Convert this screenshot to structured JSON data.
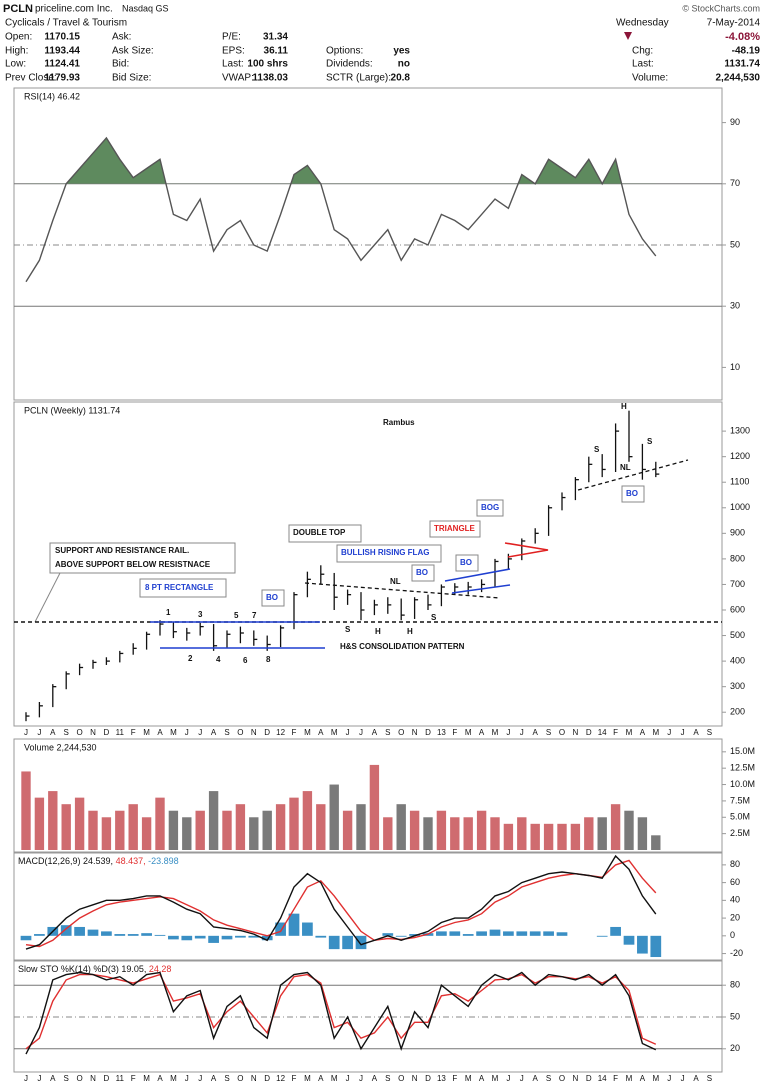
{
  "header": {
    "symbol": "PCLN",
    "name": "priceline.com Inc.",
    "exchange": "Nasdaq GS",
    "copyright": "© StockCharts.com",
    "sector": "Cyclicals / Travel & Tourism",
    "day": "Wednesday",
    "date": "7-May-2014",
    "change_pct": "-4.08%",
    "col1": [
      [
        "Open:",
        "1170.15"
      ],
      [
        "High:",
        "1193.44"
      ],
      [
        "Low:",
        "1124.41"
      ],
      [
        "Prev Close:",
        "1179.93"
      ]
    ],
    "col2": [
      [
        "Ask:"
      ],
      [
        "Ask Size:"
      ],
      [
        "Bid:"
      ],
      [
        "Bid Size:"
      ]
    ],
    "col3": [
      [
        "P/E:",
        "31.34"
      ],
      [
        "EPS:",
        "36.11"
      ],
      [
        "Last:",
        "100 shrs"
      ],
      [
        "VWAP:",
        "1138.03"
      ]
    ],
    "col4": [
      [
        "Options:",
        "yes"
      ],
      [
        "Dividends:",
        "no"
      ],
      [
        "SCTR (Large):",
        "20.8"
      ]
    ],
    "col5": [
      [
        "Chg:",
        "-48.19"
      ],
      [
        "Last:",
        "1131.74"
      ],
      [
        "Volume:",
        "2,244,530"
      ]
    ]
  },
  "chart_data": [
    {
      "type": "line",
      "label": "RSI(14) 46.42",
      "ylim": [
        0,
        100
      ],
      "yticks": [
        10,
        30,
        50,
        70,
        90
      ],
      "ref_lines": [
        30,
        50,
        70
      ],
      "fill_above": 70,
      "fill_color": "#5e8a5e",
      "series": [
        {
          "color": "#555555",
          "values": [
            38,
            45,
            58,
            70,
            75,
            80,
            85,
            78,
            72,
            75,
            78,
            60,
            58,
            65,
            48,
            55,
            58,
            50,
            48,
            60,
            73,
            76,
            70,
            55,
            52,
            45,
            50,
            55,
            45,
            52,
            50,
            60,
            58,
            55,
            60,
            65,
            62,
            73,
            70,
            78,
            75,
            72,
            78,
            70,
            78,
            60,
            52,
            46.42,
            null,
            null,
            null,
            null
          ]
        }
      ]
    },
    {
      "type": "ohlc",
      "label": "PCLN (Weekly) 1131.74",
      "ylim": [
        150,
        1410
      ],
      "yticks": [
        200,
        300,
        400,
        500,
        600,
        700,
        800,
        900,
        1000,
        1100,
        1200,
        1300
      ],
      "color": "#111111",
      "categories": [
        "J",
        "J",
        "A",
        "S",
        "O",
        "N",
        "D",
        "11",
        "F",
        "M",
        "A",
        "M",
        "J",
        "J",
        "A",
        "S",
        "O",
        "N",
        "D",
        "12",
        "F",
        "M",
        "A",
        "M",
        "J",
        "J",
        "A",
        "S",
        "O",
        "N",
        "D",
        "13",
        "F",
        "M",
        "A",
        "M",
        "J",
        "J",
        "A",
        "S",
        "O",
        "N",
        "D",
        "14",
        "F",
        "M",
        "A",
        "M",
        "J",
        "J",
        "A",
        "S"
      ],
      "high": [
        200,
        240,
        310,
        360,
        390,
        405,
        415,
        440,
        470,
        515,
        560,
        555,
        530,
        550,
        545,
        520,
        535,
        520,
        500,
        540,
        670,
        750,
        775,
        745,
        680,
        670,
        640,
        650,
        645,
        650,
        660,
        700,
        705,
        710,
        720,
        800,
        820,
        880,
        920,
        1010,
        1060,
        1120,
        1200,
        1210,
        1330,
        1380,
        1250,
        1180,
        null,
        null,
        null,
        null
      ],
      "low": [
        165,
        180,
        220,
        290,
        345,
        370,
        385,
        395,
        425,
        445,
        500,
        490,
        480,
        500,
        440,
        450,
        470,
        460,
        440,
        455,
        525,
        650,
        700,
        600,
        620,
        560,
        580,
        585,
        560,
        565,
        600,
        615,
        660,
        660,
        670,
        690,
        760,
        795,
        860,
        890,
        990,
        1030,
        1100,
        1120,
        1140,
        1180,
        1110,
        1120,
        null,
        null,
        null,
        null
      ],
      "close": [
        185,
        225,
        300,
        350,
        375,
        395,
        400,
        430,
        450,
        505,
        545,
        515,
        510,
        535,
        460,
        505,
        510,
        485,
        465,
        530,
        660,
        720,
        740,
        650,
        660,
        600,
        620,
        620,
        580,
        640,
        620,
        690,
        690,
        690,
        700,
        790,
        800,
        870,
        900,
        1000,
        1040,
        1110,
        1170,
        1150,
        1300,
        1200,
        1150,
        1131.74,
        null,
        null,
        null,
        null
      ],
      "annotations": [
        "Rambus",
        "SUPPORT AND RESISTANCE RAIL.",
        "ABOVE SUPPORT BELOW RESISTNACE",
        "8 PT RECTANGLE",
        "1",
        "2",
        "3",
        "4",
        "5",
        "6",
        "7",
        "8",
        "BO",
        "DOUBLE TOP",
        "NL",
        "S",
        "H",
        "H",
        "S",
        "H&S CONSOLIDATION PATTERN",
        "BULLISH RISING FLAG",
        "BO",
        "BO",
        "TRIANGLE",
        "BOG",
        "H",
        "S",
        "S",
        "NL",
        "BO"
      ]
    },
    {
      "type": "bar",
      "label": "Volume 2,244,530",
      "ylim": [
        0,
        16500000
      ],
      "up_color": "#cf6b6f",
      "down_color": "#7a7a7a",
      "yticks": [
        {
          "value": 2500000,
          "label": "2.5M"
        },
        {
          "value": 5000000,
          "label": "5.0M"
        },
        {
          "value": 7500000,
          "label": "7.5M"
        },
        {
          "value": 10000000,
          "label": "10.0M"
        },
        {
          "value": 12500000,
          "label": "12.5M"
        },
        {
          "value": 15000000,
          "label": "15.0M"
        }
      ],
      "values": [
        12000000,
        8000000,
        9000000,
        7000000,
        8000000,
        6000000,
        5000000,
        6000000,
        7000000,
        5000000,
        8000000,
        6000000,
        5000000,
        6000000,
        9000000,
        6000000,
        7000000,
        5000000,
        6000000,
        7000000,
        8000000,
        9000000,
        7000000,
        10000000,
        6000000,
        7000000,
        13000000,
        5000000,
        7000000,
        6000000,
        5000000,
        6000000,
        5000000,
        5000000,
        6000000,
        5000000,
        4000000,
        5000000,
        4000000,
        4000000,
        4000000,
        4000000,
        5000000,
        5000000,
        7000000,
        6000000,
        5000000,
        2244530,
        null,
        null,
        null,
        null
      ]
    },
    {
      "type": "combo",
      "label": [
        {
          "text": "MACD(12,26,9) 24.539,",
          "color": "#111111"
        },
        {
          "text": "48.437,",
          "color": "#e03030"
        },
        {
          "text": "-23.898",
          "color": "#3a8fc4"
        }
      ],
      "ylim": [
        -25,
        90
      ],
      "yticks": [
        -20,
        0,
        20,
        40,
        60,
        80
      ],
      "series": [
        {
          "style": "histogram",
          "color": "#3a8fc4",
          "values": [
            -5,
            2,
            10,
            12,
            10,
            7,
            5,
            2,
            2,
            3,
            1,
            -4,
            -5,
            -3,
            -8,
            -4,
            -2,
            -2,
            -5,
            15,
            25,
            15,
            -2,
            -15,
            -15,
            -15,
            0,
            3,
            -1,
            2,
            3,
            5,
            5,
            2,
            5,
            7,
            5,
            5,
            5,
            5,
            4,
            0,
            0,
            -1,
            10,
            -10,
            -20,
            -23.898,
            null,
            null,
            null,
            null
          ]
        },
        {
          "style": "line",
          "color": "#e03030",
          "values": [
            -10,
            -12,
            -5,
            8,
            20,
            28,
            35,
            38,
            40,
            42,
            44,
            42,
            35,
            28,
            18,
            12,
            8,
            4,
            0,
            5,
            30,
            55,
            62,
            45,
            25,
            5,
            -5,
            -3,
            -4,
            -2,
            2,
            10,
            15,
            18,
            25,
            38,
            45,
            55,
            60,
            65,
            68,
            70,
            68,
            66,
            80,
            85,
            65,
            48.437,
            null,
            null,
            null,
            null
          ]
        },
        {
          "style": "line",
          "color": "#111111",
          "values": [
            -15,
            -10,
            5,
            20,
            30,
            35,
            40,
            40,
            42,
            45,
            45,
            38,
            30,
            25,
            10,
            8,
            6,
            2,
            -5,
            20,
            55,
            70,
            60,
            30,
            10,
            -10,
            -5,
            0,
            -5,
            0,
            5,
            15,
            20,
            20,
            30,
            45,
            50,
            60,
            65,
            70,
            72,
            70,
            68,
            65,
            90,
            75,
            45,
            24.539,
            null,
            null,
            null,
            null
          ]
        }
      ]
    },
    {
      "type": "line",
      "label": [
        {
          "text": "Slow STO %K(14) %D(3) 19.05,",
          "color": "#111111"
        },
        {
          "text": "24.28",
          "color": "#e03030"
        }
      ],
      "ylim": [
        0,
        100
      ],
      "yticks": [
        20,
        50,
        80
      ],
      "ref_lines": [
        20,
        50,
        80
      ],
      "categories": [
        "J",
        "J",
        "A",
        "S",
        "O",
        "N",
        "D",
        "11",
        "F",
        "M",
        "A",
        "M",
        "J",
        "J",
        "A",
        "S",
        "O",
        "N",
        "D",
        "12",
        "F",
        "M",
        "A",
        "M",
        "J",
        "J",
        "A",
        "S",
        "O",
        "N",
        "D",
        "13",
        "F",
        "M",
        "A",
        "M",
        "J",
        "J",
        "A",
        "S",
        "O",
        "N",
        "D",
        "14",
        "F",
        "M",
        "A",
        "M",
        "J",
        "J",
        "A",
        "S"
      ],
      "series": [
        {
          "color": "#e03030",
          "values": [
            20,
            30,
            65,
            85,
            90,
            90,
            88,
            85,
            82,
            86,
            90,
            65,
            68,
            72,
            40,
            55,
            65,
            50,
            35,
            70,
            88,
            90,
            82,
            40,
            45,
            30,
            35,
            50,
            30,
            45,
            45,
            70,
            72,
            65,
            75,
            85,
            86,
            90,
            82,
            88,
            88,
            86,
            88,
            82,
            88,
            75,
            30,
            24.28,
            null,
            null,
            null,
            null
          ]
        },
        {
          "color": "#111111",
          "values": [
            15,
            40,
            85,
            90,
            92,
            90,
            85,
            88,
            80,
            90,
            92,
            55,
            70,
            75,
            30,
            60,
            70,
            40,
            30,
            80,
            90,
            92,
            80,
            30,
            50,
            20,
            40,
            60,
            20,
            55,
            40,
            80,
            70,
            60,
            80,
            90,
            85,
            92,
            80,
            90,
            88,
            85,
            90,
            80,
            90,
            70,
            25,
            19.05,
            null,
            null,
            null,
            null
          ]
        }
      ]
    }
  ]
}
